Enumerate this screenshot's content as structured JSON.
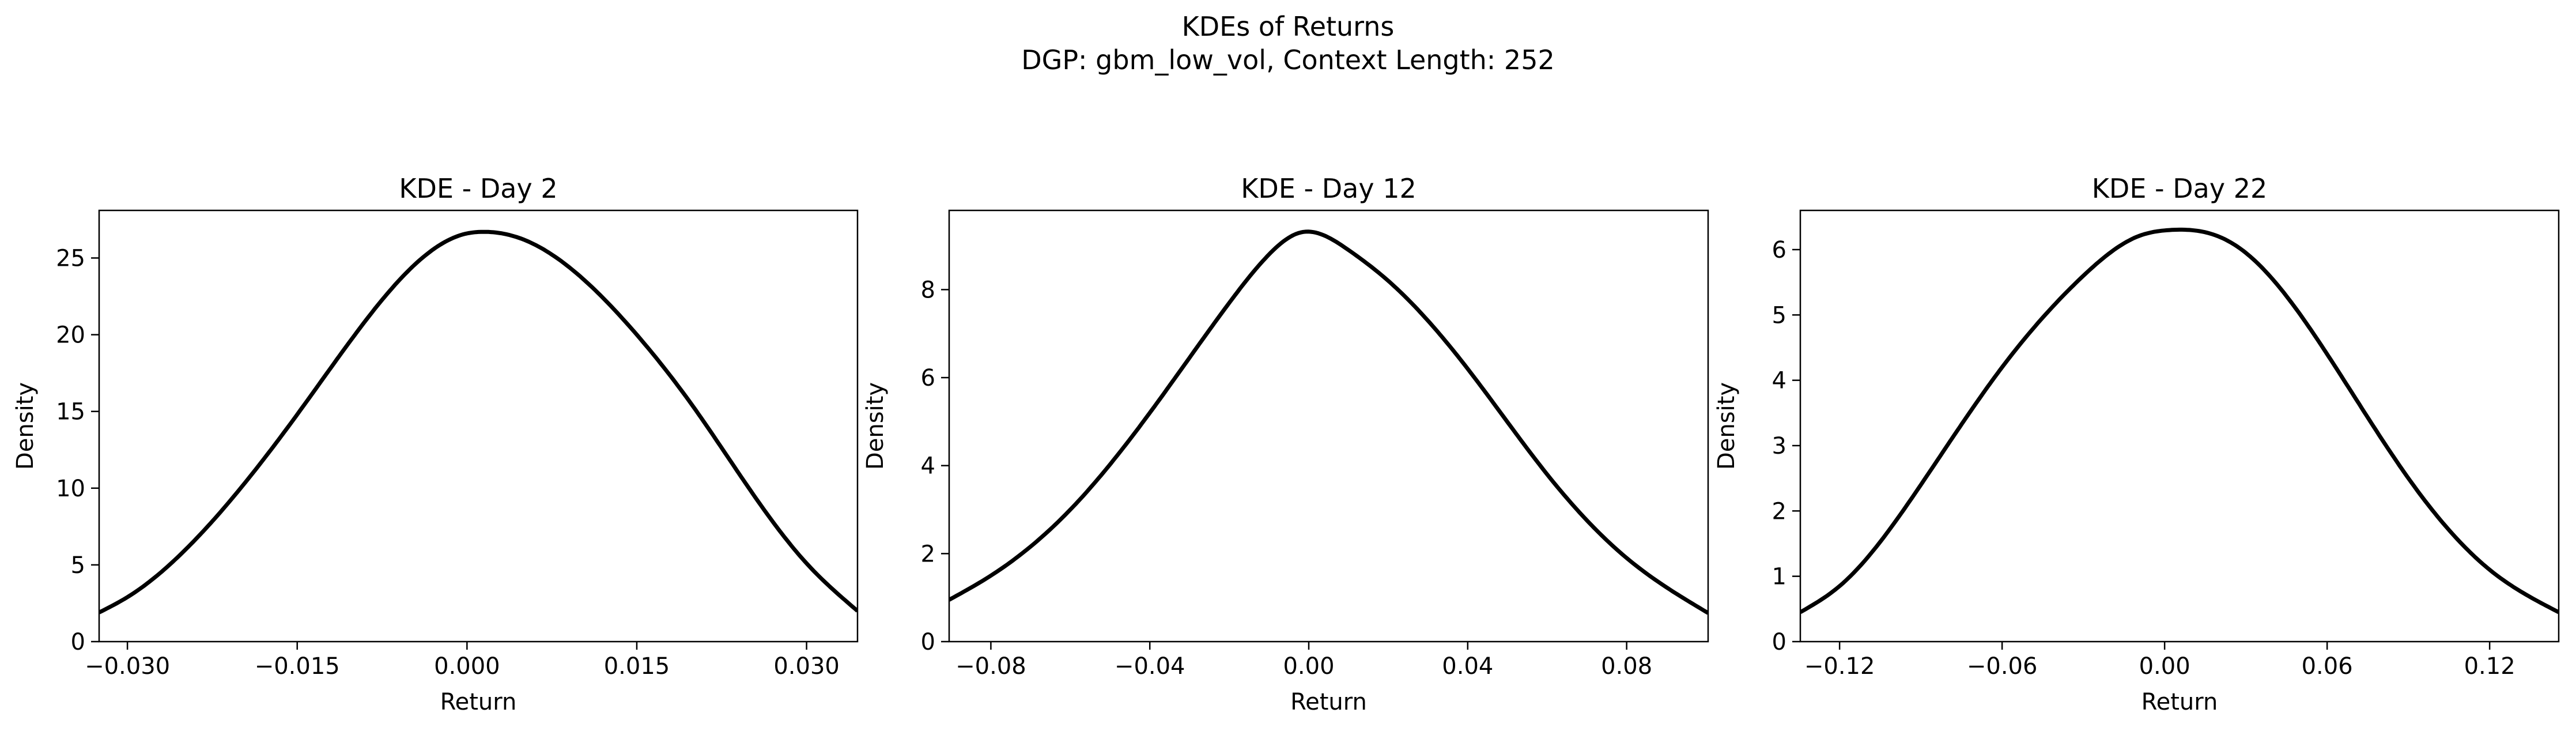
{
  "figure": {
    "title_line1": "KDEs of Returns",
    "title_line2": "DGP: gbm_low_vol, Context Length: 252"
  },
  "chart_data": [
    {
      "type": "line",
      "title": "KDE - Day 2",
      "xlabel": "Return",
      "ylabel": "Density",
      "xlim": [
        -0.0325,
        0.0345
      ],
      "ylim": [
        0,
        28.1
      ],
      "xticks": [
        -0.03,
        -0.015,
        0.0,
        0.015,
        0.03
      ],
      "xtick_labels": [
        "−0.030",
        "−0.015",
        "0.000",
        "0.015",
        "0.030"
      ],
      "yticks": [
        0,
        5,
        10,
        15,
        20,
        25
      ],
      "ytick_labels": [
        "0",
        "5",
        "10",
        "15",
        "20",
        "25"
      ],
      "series": [
        {
          "color": "#000000",
          "x": [
            -0.0325,
            -0.03,
            -0.025,
            -0.02,
            -0.015,
            -0.01,
            -0.005,
            0.0,
            0.0012,
            0.005,
            0.01,
            0.015,
            0.02,
            0.025,
            0.03,
            0.0345
          ],
          "y": [
            1.9,
            2.9,
            5.9,
            10.0,
            14.8,
            19.9,
            24.3,
            26.6,
            26.7,
            26.2,
            23.8,
            20.0,
            15.3,
            9.9,
            5.1,
            2.0
          ]
        }
      ]
    },
    {
      "type": "line",
      "title": "KDE - Day 12",
      "xlabel": "Return",
      "ylabel": "Density",
      "xlim": [
        -0.0905,
        0.1005
      ],
      "ylim": [
        0,
        9.8
      ],
      "xticks": [
        -0.08,
        -0.04,
        0.0,
        0.04,
        0.08
      ],
      "xtick_labels": [
        "−0.08",
        "−0.04",
        "0.00",
        "0.04",
        "0.08"
      ],
      "yticks": [
        0,
        2,
        4,
        6,
        8
      ],
      "ytick_labels": [
        "0",
        "2",
        "4",
        "6",
        "8"
      ],
      "series": [
        {
          "color": "#000000",
          "x": [
            -0.0905,
            -0.08,
            -0.06,
            -0.04,
            -0.02,
            -0.01,
            -0.002,
            0.01,
            0.02,
            0.04,
            0.06,
            0.08,
            0.1005
          ],
          "y": [
            0.95,
            1.5,
            3.0,
            5.2,
            7.7,
            8.8,
            9.3,
            8.9,
            8.2,
            6.2,
            3.8,
            1.9,
            0.65
          ]
        }
      ]
    },
    {
      "type": "line",
      "title": "KDE - Day 22",
      "xlabel": "Return",
      "ylabel": "Density",
      "xlim": [
        -0.1345,
        0.1455
      ],
      "ylim": [
        0,
        6.6
      ],
      "xticks": [
        -0.12,
        -0.06,
        0.0,
        0.06,
        0.12
      ],
      "xtick_labels": [
        "−0.12",
        "−0.06",
        "0.00",
        "0.06",
        "0.12"
      ],
      "yticks": [
        0,
        1,
        2,
        3,
        4,
        5,
        6
      ],
      "ytick_labels": [
        "0",
        "1",
        "2",
        "3",
        "4",
        "5",
        "6"
      ],
      "series": [
        {
          "color": "#000000",
          "x": [
            -0.1345,
            -0.12,
            -0.09,
            -0.06,
            -0.03,
            -0.01,
            0.002,
            0.02,
            0.03,
            0.06,
            0.09,
            0.12,
            0.1455
          ],
          "y": [
            0.45,
            0.85,
            2.4,
            4.2,
            5.6,
            6.2,
            6.3,
            6.2,
            5.95,
            4.4,
            2.5,
            1.1,
            0.45
          ]
        }
      ]
    }
  ]
}
